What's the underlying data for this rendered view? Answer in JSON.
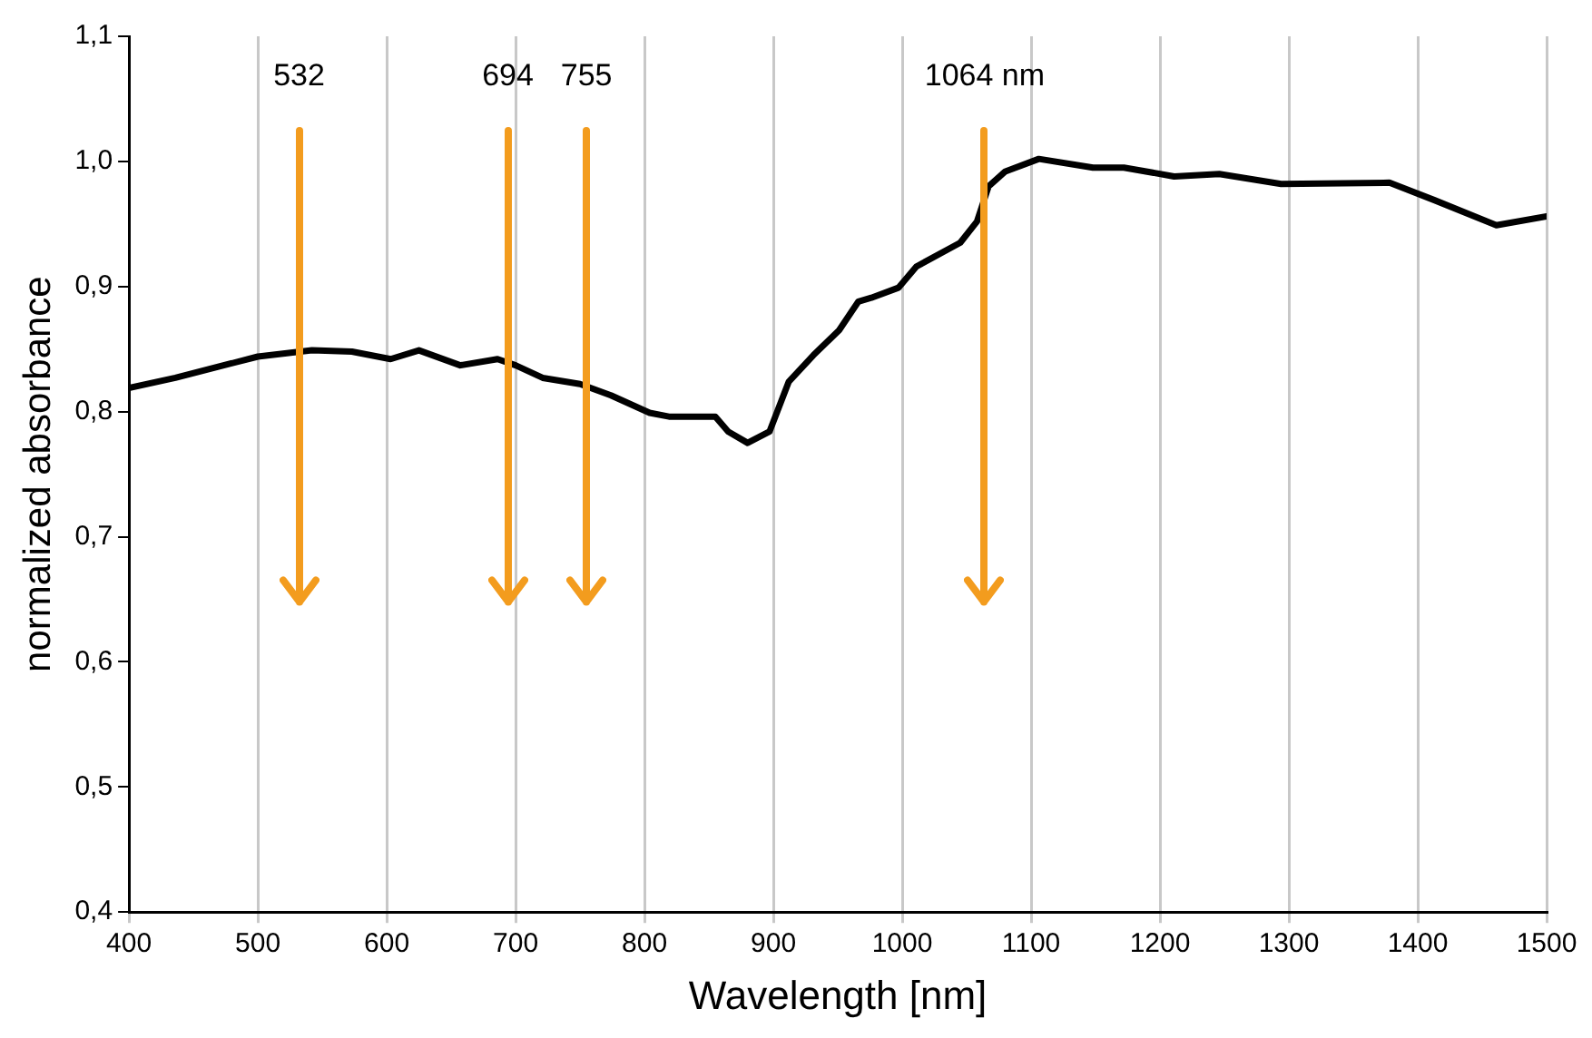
{
  "chart_data": {
    "type": "line",
    "xlabel": "Wavelength [nm]",
    "ylabel": "normalized absorbance",
    "x": [
      400,
      436,
      500,
      542,
      573,
      603,
      625,
      657,
      686,
      700,
      721,
      750,
      774,
      804,
      819,
      855,
      865,
      880,
      897,
      912,
      931,
      951,
      966,
      976,
      997,
      1011,
      1045,
      1058,
      1067,
      1080,
      1106,
      1148,
      1172,
      1211,
      1246,
      1294,
      1378,
      1413,
      1461,
      1500
    ],
    "series": [
      {
        "color": "#000000",
        "values": [
          0.819,
          0.827,
          0.844,
          0.849,
          0.848,
          0.842,
          0.849,
          0.837,
          0.842,
          0.837,
          0.827,
          0.822,
          0.813,
          0.799,
          0.796,
          0.796,
          0.784,
          0.775,
          0.784,
          0.824,
          0.845,
          0.865,
          0.888,
          0.891,
          0.899,
          0.916,
          0.935,
          0.952,
          0.98,
          0.992,
          1.002,
          0.995,
          0.995,
          0.988,
          0.99,
          0.982,
          0.983,
          0.969,
          0.949,
          0.956
        ]
      }
    ],
    "xlim": [
      400,
      1500
    ],
    "xticks": [
      400,
      500,
      600,
      700,
      800,
      900,
      1000,
      1100,
      1200,
      1300,
      1400,
      1500
    ],
    "ylim": [
      0.4,
      1.1
    ],
    "yticks": [
      {
        "value": 0.4,
        "label": "0,4"
      },
      {
        "value": 0.5,
        "label": "0,5"
      },
      {
        "value": 0.6,
        "label": "0,6"
      },
      {
        "value": 0.7,
        "label": "0,7"
      },
      {
        "value": 0.8,
        "label": "0,8"
      },
      {
        "value": 0.9,
        "label": "0,9"
      },
      {
        "value": 1.0,
        "label": "1,0"
      },
      {
        "value": 1.1,
        "label": "1,1"
      }
    ],
    "ref_lines": [
      {
        "axis": "x",
        "value": 532,
        "label": "532",
        "color": "#f39c1e"
      },
      {
        "axis": "x",
        "value": 694,
        "label": "694",
        "color": "#f39c1e"
      },
      {
        "axis": "x",
        "value": 755,
        "label": "755",
        "color": "#f39c1e"
      },
      {
        "axis": "x",
        "value": 1064,
        "label": "1064 nm",
        "color": "#f39c1e"
      }
    ],
    "grid": "x",
    "legend": false,
    "marker": "none",
    "line_style": "solid"
  }
}
